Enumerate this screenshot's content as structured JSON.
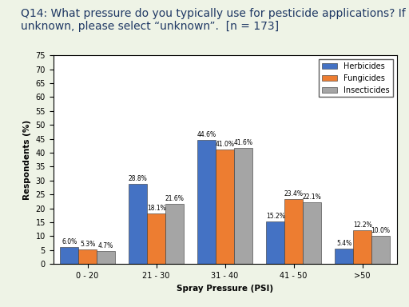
{
  "chart_data": {
    "type": "bar",
    "title": "Q14: What pressure do you typically use for pesticide applications? If unknown, please select “unknown”.  [n = 173]",
    "x_label": "Spray Pressure (PSI)",
    "y_label": "Respondents (%)",
    "categories": [
      "0 - 20",
      "21 - 30",
      "31 - 40",
      "41 - 50",
      ">50"
    ],
    "series": [
      {
        "name": "Herbicides",
        "color": "#4472c4",
        "values": [
          6.0,
          28.8,
          44.6,
          15.2,
          5.4
        ],
        "value_labels": [
          "6.0%",
          "28.8%",
          "44.6%",
          "15.2%",
          "5.4%"
        ]
      },
      {
        "name": "Fungicides",
        "color": "#ed7d31",
        "values": [
          5.3,
          18.1,
          41.0,
          23.4,
          12.2
        ],
        "value_labels": [
          "5.3%",
          "18.1%",
          "41.0%",
          "23.4%",
          "12.2%"
        ]
      },
      {
        "name": "Insecticides",
        "color": "#a5a5a5",
        "values": [
          4.7,
          21.6,
          41.6,
          22.1,
          10.0
        ],
        "value_labels": [
          "4.7%",
          "21.6%",
          "41.6%",
          "22.1%",
          "10.0%"
        ]
      }
    ],
    "ylim": [
      0,
      75
    ],
    "yticks": [
      0,
      5,
      10,
      15,
      20,
      25,
      30,
      35,
      40,
      45,
      50,
      55,
      60,
      65,
      70,
      75
    ],
    "grid": false,
    "legend": "upper right",
    "data_labels": true
  }
}
